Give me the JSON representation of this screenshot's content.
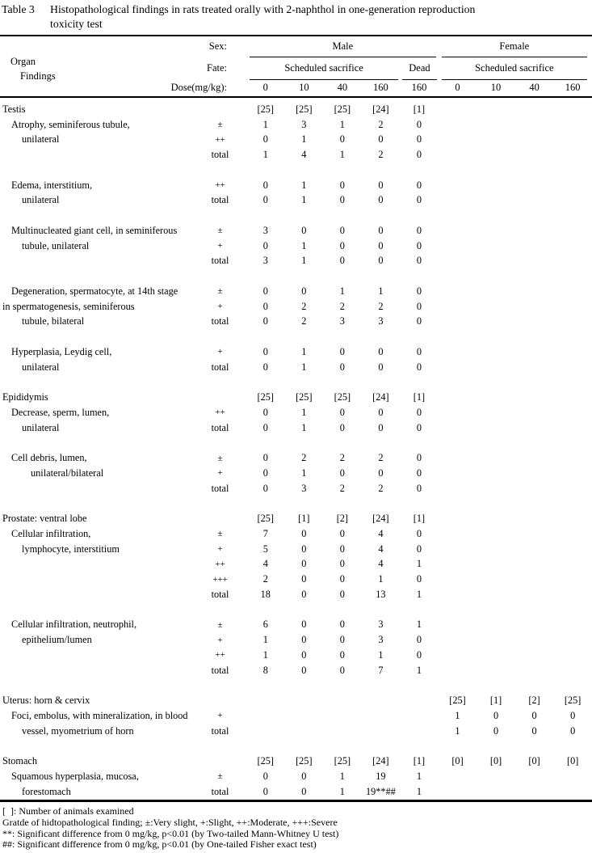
{
  "caption": {
    "label": "Table 3",
    "lines": [
      "Histopathological findings in rats treated orally with 2-naphthol in one-generation reproduction",
      "toxicity test"
    ]
  },
  "header": {
    "organ_label": "Organ",
    "findings_label": "Findings",
    "sex_label": "Sex:",
    "fate_label": "Fate:",
    "dose_label": "Dose(mg/kg):",
    "male_label": "Male",
    "female_label": "Female",
    "male_fate_groups": [
      {
        "label": "Scheduled sacrifice",
        "span": 4
      },
      {
        "label": "Dead",
        "span": 1
      }
    ],
    "female_fate_groups": [
      {
        "label": "Scheduled sacrifice",
        "span": 4
      }
    ],
    "doses": [
      "0",
      "10",
      "40",
      "160",
      "160",
      "0",
      "10",
      "40",
      "160"
    ]
  },
  "table": {
    "rows": [
      {
        "l": "Testis",
        "i": 0,
        "g": "",
        "v": [
          "[25]",
          "[25]",
          "[25]",
          "[24]",
          "[1]"
        ]
      },
      {
        "l": "Atrophy, seminiferous tubule,",
        "i": 1,
        "g": "±",
        "v": [
          "1",
          "3",
          "1",
          "2",
          "0"
        ]
      },
      {
        "l": "unilateral",
        "i": 2,
        "g": "++",
        "v": [
          "0",
          "1",
          "0",
          "0",
          "0"
        ]
      },
      {
        "l": "",
        "i": 0,
        "g": "total",
        "v": [
          "1",
          "4",
          "1",
          "2",
          "0"
        ]
      },
      null,
      {
        "l": "Edema, interstitium,",
        "i": 1,
        "g": "++",
        "v": [
          "0",
          "1",
          "0",
          "0",
          "0"
        ]
      },
      {
        "l": "unilateral",
        "i": 2,
        "g": "total",
        "v": [
          "0",
          "1",
          "0",
          "0",
          "0"
        ]
      },
      null,
      {
        "l": "Multinucleated giant cell, in seminiferous",
        "i": 1,
        "g": "±",
        "v": [
          "3",
          "0",
          "0",
          "0",
          "0"
        ]
      },
      {
        "l": "tubule, unilateral",
        "i": 2,
        "g": "+",
        "v": [
          "0",
          "1",
          "0",
          "0",
          "0"
        ]
      },
      {
        "l": "",
        "i": 0,
        "g": "total",
        "v": [
          "3",
          "1",
          "0",
          "0",
          "0"
        ]
      },
      null,
      {
        "l": "Degeneration, spermatocyte, at 14th stage",
        "i": 1,
        "g": "±",
        "v": [
          "0",
          "0",
          "1",
          "1",
          "0"
        ]
      },
      {
        "l": "in spermatogenesis, seminiferous",
        "i": 0,
        "g": "+",
        "v": [
          "0",
          "2",
          "2",
          "2",
          "0"
        ]
      },
      {
        "l": "tubule, bilateral",
        "i": 2,
        "g": "total",
        "v": [
          "0",
          "2",
          "3",
          "3",
          "0"
        ]
      },
      null,
      {
        "l": "Hyperplasia, Leydig cell,",
        "i": 1,
        "g": "+",
        "v": [
          "0",
          "1",
          "0",
          "0",
          "0"
        ]
      },
      {
        "l": "unilateral",
        "i": 2,
        "g": "total",
        "v": [
          "0",
          "1",
          "0",
          "0",
          "0"
        ]
      },
      null,
      {
        "l": "Epididymis",
        "i": 0,
        "g": "",
        "v": [
          "[25]",
          "[25]",
          "[25]",
          "[24]",
          "[1]"
        ]
      },
      {
        "l": "Decrease, sperm, lumen,",
        "i": 1,
        "g": "++",
        "v": [
          "0",
          "1",
          "0",
          "0",
          "0"
        ]
      },
      {
        "l": "unilateral",
        "i": 2,
        "g": "total",
        "v": [
          "0",
          "1",
          "0",
          "0",
          "0"
        ]
      },
      null,
      {
        "l": "Cell debris, lumen,",
        "i": 1,
        "g": "±",
        "v": [
          "0",
          "2",
          "2",
          "2",
          "0"
        ]
      },
      {
        "l": "unilateral/bilateral",
        "i": 3,
        "g": "+",
        "v": [
          "0",
          "1",
          "0",
          "0",
          "0"
        ]
      },
      {
        "l": "",
        "i": 0,
        "g": "total",
        "v": [
          "0",
          "3",
          "2",
          "2",
          "0"
        ]
      },
      null,
      {
        "l": "Prostate: ventral lobe",
        "i": 0,
        "g": "",
        "v": [
          "[25]",
          "[1]",
          "[2]",
          "[24]",
          "[1]"
        ]
      },
      {
        "l": "Cellular infiltration,",
        "i": 1,
        "g": "±",
        "v": [
          "7",
          "0",
          "0",
          "4",
          "0"
        ]
      },
      {
        "l": "lymphocyte, interstitium",
        "i": 2,
        "g": "+",
        "v": [
          "5",
          "0",
          "0",
          "4",
          "0"
        ]
      },
      {
        "l": "",
        "i": 0,
        "g": "++",
        "v": [
          "4",
          "0",
          "0",
          "4",
          "1"
        ]
      },
      {
        "l": "",
        "i": 0,
        "g": "+++",
        "v": [
          "2",
          "0",
          "0",
          "1",
          "0"
        ]
      },
      {
        "l": "",
        "i": 0,
        "g": "total",
        "v": [
          "18",
          "0",
          "0",
          "13",
          "1"
        ]
      },
      null,
      {
        "l": "Cellular infiltration, neutrophil,",
        "i": 1,
        "g": "±",
        "v": [
          "6",
          "0",
          "0",
          "3",
          "1"
        ]
      },
      {
        "l": "epithelium/lumen",
        "i": 2,
        "g": "+",
        "v": [
          "1",
          "0",
          "0",
          "3",
          "0"
        ]
      },
      {
        "l": "",
        "i": 0,
        "g": "++",
        "v": [
          "1",
          "0",
          "0",
          "1",
          "0"
        ]
      },
      {
        "l": "",
        "i": 0,
        "g": "total",
        "v": [
          "8",
          "0",
          "0",
          "7",
          "1"
        ]
      },
      null,
      {
        "l": "Uterus: horn & cervix",
        "i": 0,
        "g": "",
        "v": [
          "",
          "",
          "",
          "",
          "",
          "[25]",
          "[1]",
          "[2]",
          "[25]"
        ]
      },
      {
        "l": "Foci, embolus, with mineralization, in blood",
        "i": 1,
        "g": "+",
        "v": [
          "",
          "",
          "",
          "",
          "",
          "1",
          "0",
          "0",
          "0"
        ]
      },
      {
        "l": "vessel, myometrium of horn",
        "i": 2,
        "g": "total",
        "v": [
          "",
          "",
          "",
          "",
          "",
          "1",
          "0",
          "0",
          "0"
        ]
      },
      null,
      {
        "l": "Stomach",
        "i": 0,
        "g": "",
        "v": [
          "[25]",
          "[25]",
          "[25]",
          "[24]",
          "[1]",
          "[0]",
          "[0]",
          "[0]",
          "[0]"
        ]
      },
      {
        "l": "Squamous hyperplasia, mucosa,",
        "i": 1,
        "g": "±",
        "v": [
          "0",
          "0",
          "1",
          "19",
          "1"
        ]
      },
      {
        "l": "forestomach",
        "i": 2,
        "g": "total",
        "v": [
          "0",
          "0",
          "1",
          "19**##",
          "1"
        ]
      }
    ]
  },
  "footnotes": {
    "lines": [
      "[ ]: Number of animals examined",
      "Gratde of hidtopathological finding; ±:Very slight, +:Slight, ++:Moderate, +++:Severe",
      "**: Significant difference from 0 mg/kg, p<0.01 (by Two-tailed Mann-Whitney U test)",
      "##: Significant difference from 0 mg/kg, p<0.01 (by One-tailed Fisher exact test)"
    ]
  }
}
